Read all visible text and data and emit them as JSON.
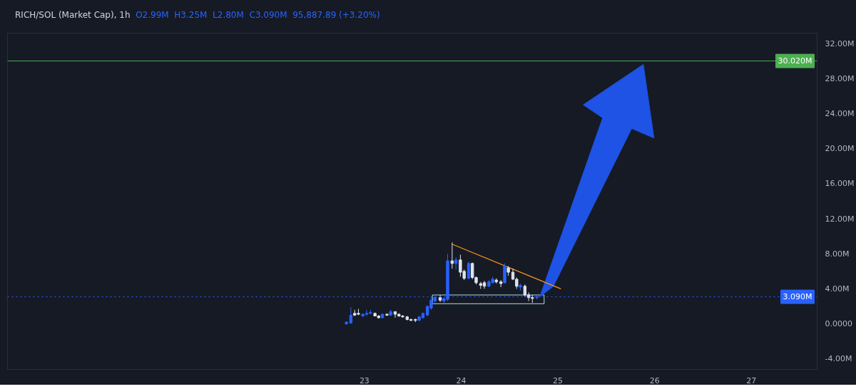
{
  "chart_data": {
    "type": "candlestick",
    "title": "RICH/SOL (Market Cap), 1h",
    "annotations": [
      "O2.99M",
      "H3.25M",
      "L2.80M",
      "C3.090M",
      "95,887.89 (+3.20%)"
    ],
    "x": [
      22.814,
      22.86,
      22.899,
      22.938,
      22.984,
      23.023,
      23.062,
      23.109,
      23.147,
      23.186,
      23.233,
      23.271,
      23.318,
      23.357,
      23.395,
      23.442,
      23.481,
      23.527,
      23.566,
      23.605,
      23.651,
      23.69,
      23.729,
      23.783,
      23.822,
      23.86,
      23.907,
      23.946,
      23.992,
      24.031,
      24.078,
      24.116,
      24.155,
      24.202,
      24.24,
      24.287,
      24.326,
      24.364,
      24.411,
      24.45,
      24.488,
      24.535,
      24.574,
      24.612,
      24.659,
      24.698,
      24.736,
      24.783
    ],
    "ohlc": [
      [
        0.0,
        0.3,
        -0.1,
        0.2
      ],
      [
        0.1,
        1.9,
        0.0,
        1.0
      ],
      [
        1.2,
        1.6,
        0.9,
        1.0
      ],
      [
        1.2,
        1.7,
        1.0,
        1.1
      ],
      [
        0.9,
        1.2,
        0.8,
        1.1
      ],
      [
        1.1,
        1.6,
        0.9,
        1.2
      ],
      [
        1.2,
        1.6,
        1.1,
        1.3
      ],
      [
        1.2,
        1.3,
        0.9,
        0.9
      ],
      [
        0.9,
        1.0,
        0.6,
        0.7
      ],
      [
        0.7,
        1.2,
        0.6,
        1.1
      ],
      [
        1.1,
        1.2,
        0.9,
        1.0
      ],
      [
        1.0,
        1.6,
        0.9,
        1.4
      ],
      [
        1.4,
        1.4,
        0.7,
        1.1
      ],
      [
        1.1,
        1.2,
        0.8,
        0.9
      ],
      [
        0.9,
        1.0,
        0.7,
        0.8
      ],
      [
        0.8,
        0.9,
        0.4,
        0.5
      ],
      [
        0.5,
        0.6,
        0.3,
        0.4
      ],
      [
        0.5,
        0.6,
        0.2,
        0.4
      ],
      [
        0.4,
        0.9,
        0.3,
        0.8
      ],
      [
        0.7,
        1.3,
        0.6,
        1.2
      ],
      [
        1.0,
        2.1,
        0.9,
        2.0
      ],
      [
        1.8,
        3.2,
        1.6,
        2.7
      ],
      [
        2.6,
        3.3,
        2.4,
        3.0
      ],
      [
        3.0,
        3.3,
        2.5,
        2.7
      ],
      [
        2.6,
        3.0,
        2.3,
        2.9
      ],
      [
        2.8,
        8.0,
        2.6,
        7.2
      ],
      [
        7.2,
        9.3,
        6.3,
        6.9
      ],
      [
        6.9,
        7.6,
        6.2,
        7.3
      ],
      [
        7.3,
        7.9,
        5.4,
        5.9
      ],
      [
        6.0,
        6.2,
        5.0,
        5.2
      ],
      [
        5.2,
        7.1,
        5.1,
        6.9
      ],
      [
        6.9,
        7.0,
        5.1,
        5.3
      ],
      [
        5.3,
        5.4,
        4.5,
        4.7
      ],
      [
        4.6,
        4.8,
        4.0,
        4.4
      ],
      [
        4.7,
        4.9,
        4.0,
        4.3
      ],
      [
        4.3,
        5.0,
        4.2,
        4.8
      ],
      [
        4.7,
        5.4,
        4.6,
        5.1
      ],
      [
        5.0,
        5.2,
        4.6,
        4.8
      ],
      [
        4.8,
        5.0,
        4.2,
        4.6
      ],
      [
        4.7,
        6.9,
        4.6,
        6.6
      ],
      [
        6.4,
        6.6,
        5.5,
        5.9
      ],
      [
        5.9,
        6.3,
        5.0,
        5.1
      ],
      [
        5.1,
        5.3,
        4.0,
        4.3
      ],
      [
        4.2,
        4.6,
        3.8,
        4.4
      ],
      [
        4.3,
        4.5,
        3.1,
        3.3
      ],
      [
        3.3,
        3.6,
        2.6,
        3.0
      ],
      [
        3.0,
        3.3,
        2.4,
        2.9
      ],
      [
        2.99,
        3.25,
        2.8,
        3.09
      ]
    ],
    "colors": [
      "#2962ff",
      "#2962ff",
      "#e0e3eb",
      "#e0e3eb",
      "#2962ff",
      "#2962ff",
      "#2962ff",
      "#e0e3eb",
      "#e0e3eb",
      "#2962ff",
      "#e0e3eb",
      "#2962ff",
      "#e0e3eb",
      "#e0e3eb",
      "#e0e3eb",
      "#e0e3eb",
      "#e0e3eb",
      "#e0e3eb",
      "#2962ff",
      "#2962ff",
      "#2962ff",
      "#2962ff",
      "#2962ff",
      "#e0e3eb",
      "#2962ff",
      "#2962ff",
      "#e0e3eb",
      "#2962ff",
      "#e0e3eb",
      "#e0e3eb",
      "#2962ff",
      "#e0e3eb",
      "#e0e3eb",
      "#e0e3eb",
      "#e0e3eb",
      "#2962ff",
      "#2962ff",
      "#e0e3eb",
      "#e0e3eb",
      "#2962ff",
      "#e0e3eb",
      "#e0e3eb",
      "#e0e3eb",
      "#2962ff",
      "#e0e3eb",
      "#e0e3eb",
      "#e0e3eb",
      "#2962ff"
    ],
    "series": [
      {
        "type": "line",
        "color": "#f7931a",
        "x": [
          23.907,
          25.031
        ],
        "values": [
          9.1,
          4.0
        ]
      }
    ],
    "ref_lines": [
      {
        "axis": "y",
        "value": 30.02,
        "label": "30.020M",
        "color": "#4caf50",
        "line_style": "solid"
      },
      {
        "axis": "y",
        "value": 3.09,
        "label": "3.090M",
        "color": "#2962ff",
        "line_style": "dotted"
      }
    ],
    "xlim": [
      19.31,
      27.68
    ],
    "xticks": [
      23,
      24,
      25,
      26,
      27
    ],
    "ylim": [
      -5.2,
      33.2
    ],
    "yticks": [
      {
        "value": -4,
        "label": "-4.00M"
      },
      {
        "value": 0,
        "label": "0.0000"
      },
      {
        "value": 4,
        "label": "4.00M"
      },
      {
        "value": 8,
        "label": "8.00M"
      },
      {
        "value": 12,
        "label": "12.00M"
      },
      {
        "value": 16,
        "label": "16.00M"
      },
      {
        "value": 20,
        "label": "20.00M"
      },
      {
        "value": 24,
        "label": "24.00M"
      },
      {
        "value": 28,
        "label": "28.00M"
      },
      {
        "value": 32,
        "label": "32.00M"
      }
    ],
    "grid": false
  }
}
